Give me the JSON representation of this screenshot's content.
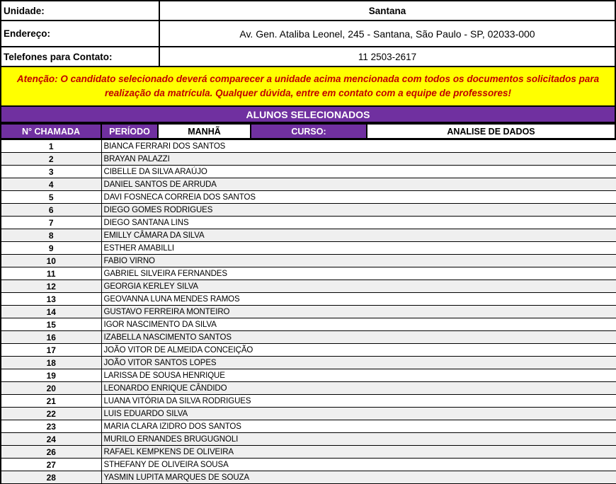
{
  "colors": {
    "purple": "#7030A0",
    "yellow": "#FFFF00",
    "warning_text": "#C00000",
    "band_gray": "#EFEFEF"
  },
  "info": {
    "unidade_label": "Unidade:",
    "unidade_value": "Santana",
    "endereco_label": "Endereço:",
    "endereco_value": "Av. Gen. Ataliba Leonel, 245 - Santana, São Paulo - SP, 02033-000",
    "telefones_label": "Telefones para Contato:",
    "telefones_value": "11 2503-2617"
  },
  "warning": "Atenção: O candidato selecionado deverá comparecer a unidade acima mencionada com todos os documentos solicitados para realização da matrícula. Qualquer dúvida, entre em contato com a equipe de professores!",
  "table": {
    "title": "ALUNOS SELECIONADOS",
    "headers": {
      "chamada": "N° CHAMADA",
      "periodo": "PERÍODO",
      "periodo_value": "MANHÃ",
      "curso": "CURSO:",
      "curso_value": "ANALISE DE DADOS"
    },
    "rows": [
      {
        "num": "1",
        "name": "BIANCA FERRARI DOS SANTOS"
      },
      {
        "num": "2",
        "name": "BRAYAN PALAZZI"
      },
      {
        "num": "3",
        "name": "CIBELLE DA SILVA ARAÚJO"
      },
      {
        "num": "4",
        "name": "DANIEL SANTOS DE ARRUDA"
      },
      {
        "num": "5",
        "name": "DAVI FOSNECA CORREIA DOS SANTOS"
      },
      {
        "num": "6",
        "name": "DIEGO GOMES RODRIGUES"
      },
      {
        "num": "7",
        "name": "DIEGO SANTANA LINS"
      },
      {
        "num": "8",
        "name": "EMILLY CÂMARA DA SILVA"
      },
      {
        "num": "9",
        "name": "ESTHER AMABILLI"
      },
      {
        "num": "10",
        "name": "FABIO VIRNO"
      },
      {
        "num": "11",
        "name": "GABRIEL SILVEIRA FERNANDES"
      },
      {
        "num": "12",
        "name": "GEORGIA KERLEY SILVA"
      },
      {
        "num": "13",
        "name": "GEOVANNA LUNA MENDES RAMOS"
      },
      {
        "num": "14",
        "name": "GUSTAVO FERREIRA MONTEIRO"
      },
      {
        "num": "15",
        "name": "IGOR NASCIMENTO DA SILVA"
      },
      {
        "num": "16",
        "name": "IZABELLA NASCIMENTO SANTOS"
      },
      {
        "num": "17",
        "name": "JOÃO VITOR DE ALMEIDA CONCEIÇÃO"
      },
      {
        "num": "18",
        "name": "JOÃO VITOR SANTOS LOPES"
      },
      {
        "num": "19",
        "name": "LARISSA DE SOUSA HENRIQUE"
      },
      {
        "num": "20",
        "name": "LEONARDO ENRIQUE CÂNDIDO"
      },
      {
        "num": "21",
        "name": "LUANA VITÓRIA DA SILVA RODRIGUES"
      },
      {
        "num": "22",
        "name": "LUIS EDUARDO SILVA"
      },
      {
        "num": "23",
        "name": "MARIA CLARA IZIDRO DOS SANTOS"
      },
      {
        "num": "24",
        "name": "MURILO ERNANDES BRUGUGNOLI"
      },
      {
        "num": "26",
        "name": "RAFAEL KEMPKENS DE OLIVEIRA"
      },
      {
        "num": "27",
        "name": "STHEFANY DE OLIVEIRA SOUSA"
      },
      {
        "num": "28",
        "name": "YASMIN LUPITA MARQUES DE SOUZA"
      }
    ]
  }
}
